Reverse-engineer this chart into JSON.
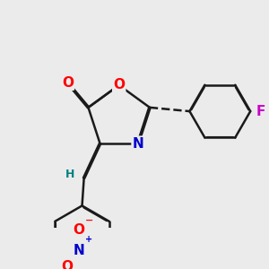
{
  "background_color": "#ebebeb",
  "bond_color": "#1a1a1a",
  "bond_width": 1.8,
  "atom_colors": {
    "O": "#ff0000",
    "N": "#0000cc",
    "Br": "#cc6600",
    "F": "#cc00cc",
    "H": "#008080",
    "C": "#1a1a1a"
  },
  "font_size": 10,
  "fig_size": [
    3.0,
    3.0
  ],
  "dpi": 100
}
